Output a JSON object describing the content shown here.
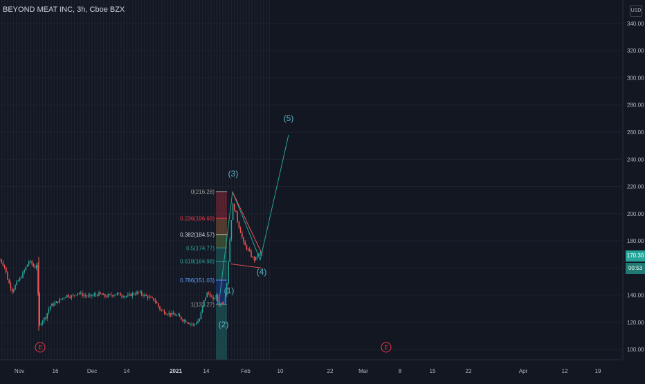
{
  "header": {
    "symbol_title": "BEYOND MEAT INC, 3h, Cboe BZX",
    "currency_label": "USD"
  },
  "price_axis": {
    "current_price_label": "170.30",
    "countdown_label": "00:53"
  },
  "event_markers": [
    "E",
    "E"
  ],
  "chart_data": {
    "type": "candlestick",
    "x_tick_labels": [
      "Nov",
      "16",
      "Dec",
      "14",
      "2021",
      "14",
      "Feb",
      "10",
      "22",
      "Mar",
      "8",
      "15",
      "22",
      "Apr",
      "12",
      "19"
    ],
    "y_tick_labels": [
      100,
      120,
      140,
      160,
      180,
      200,
      220,
      240,
      260,
      280,
      300,
      320,
      340
    ],
    "ylim": [
      97,
      342
    ],
    "y_tick_display": [
      "100.00",
      "120.00",
      "140.00",
      "160.00",
      "180.00",
      "200.00",
      "220.00",
      "240.00",
      "260.00",
      "280.00",
      "300.00",
      "320.00",
      "340.00"
    ],
    "price_path": [
      [
        0,
        166
      ],
      [
        6,
        162
      ],
      [
        12,
        150
      ],
      [
        18,
        143
      ],
      [
        24,
        149
      ],
      [
        30,
        153
      ],
      [
        36,
        159
      ],
      [
        42,
        165
      ],
      [
        46,
        163
      ],
      [
        50,
        160
      ],
      [
        54,
        164
      ],
      [
        56,
        116
      ],
      [
        60,
        121
      ],
      [
        66,
        124
      ],
      [
        72,
        132
      ],
      [
        80,
        134
      ],
      [
        88,
        137
      ],
      [
        96,
        140
      ],
      [
        104,
        139
      ],
      [
        112,
        142
      ],
      [
        120,
        140
      ],
      [
        128,
        139
      ],
      [
        136,
        140
      ],
      [
        144,
        141
      ],
      [
        152,
        139
      ],
      [
        160,
        140
      ],
      [
        168,
        141
      ],
      [
        176,
        140
      ],
      [
        184,
        139
      ],
      [
        192,
        141
      ],
      [
        200,
        142
      ],
      [
        208,
        140
      ],
      [
        216,
        138
      ],
      [
        224,
        136
      ],
      [
        232,
        129
      ],
      [
        240,
        127
      ],
      [
        248,
        126
      ],
      [
        256,
        125
      ],
      [
        264,
        122
      ],
      [
        272,
        120
      ],
      [
        280,
        118
      ],
      [
        288,
        122
      ],
      [
        292,
        130
      ],
      [
        296,
        138
      ],
      [
        300,
        142
      ],
      [
        304,
        140
      ],
      [
        308,
        136
      ],
      [
        312,
        140
      ],
      [
        316,
        133
      ],
      [
        320,
        134
      ],
      [
        324,
        136
      ],
      [
        328,
        150
      ],
      [
        332,
        180
      ],
      [
        336,
        207
      ],
      [
        340,
        202
      ],
      [
        344,
        193
      ],
      [
        348,
        186
      ],
      [
        352,
        178
      ],
      [
        356,
        175
      ],
      [
        360,
        172
      ],
      [
        364,
        168
      ],
      [
        368,
        166
      ],
      [
        372,
        169
      ],
      [
        376,
        171
      ],
      [
        380,
        170
      ]
    ],
    "elliott_waves": [
      {
        "label": "(1)",
        "x": 323,
        "y": 151
      },
      {
        "label": "(2)",
        "x": 323,
        "y": 130
      },
      {
        "label": "(3)",
        "x": 336,
        "y": 216
      },
      {
        "label": "(4)",
        "x": 378,
        "y": 164
      },
      {
        "label": "(5)",
        "x": 417,
        "y": 258
      }
    ],
    "fibonacci_levels": [
      {
        "label": "0(216.28)",
        "price": 216.28,
        "color": "#9e9e9e"
      },
      {
        "label": "0.236(196.69)",
        "price": 196.69,
        "color": "#f23645"
      },
      {
        "label": "0.382(184.57)",
        "price": 184.57,
        "color": "#d1d4dc"
      },
      {
        "label": "0.5(174.77)",
        "price": 174.77,
        "color": "#26a69a"
      },
      {
        "label": "0.618(164.98)",
        "price": 164.98,
        "color": "#26a69a"
      },
      {
        "label": "0.786(151.03)",
        "price": 151.03,
        "color": "#5b9cf6"
      },
      {
        "label": "1(133.27)",
        "price": 133.27,
        "color": "#9e9e9e"
      }
    ],
    "grid": true
  }
}
